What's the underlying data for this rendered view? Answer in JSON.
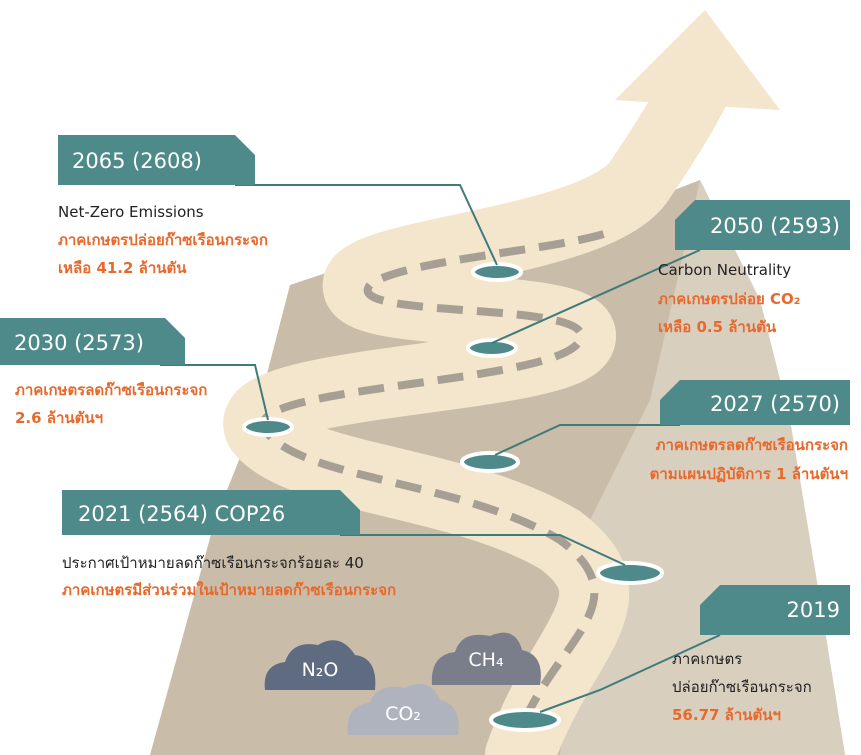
{
  "milestones": [
    {
      "year": "2065 (2608)",
      "lines": [
        "Net-Zero Emissions",
        "ภาคเกษตรปล่อยก๊าซเรือนกระจก",
        "เหลือ 41.2 ล้านตัน"
      ]
    },
    {
      "year": "2050 (2593)",
      "lines": [
        "Carbon Neutrality",
        "ภาคเกษตรปล่อย CO₂",
        "เหลือ 0.5 ล้านตัน"
      ]
    },
    {
      "year": "2030 (2573)",
      "lines": [
        "ภาคเกษตรลดก๊าซเรือนกระจก",
        "2.6 ล้านตันฯ"
      ]
    },
    {
      "year": "2027 (2570)",
      "lines": [
        "ภาคเกษตรลดก๊าซเรือนกระจก",
        "ตามแผนปฏิบัติการ 1 ล้านตันฯ"
      ]
    },
    {
      "year": "2021 (2564) COP26",
      "lines": [
        "ประกาศเป้าหมายลดก๊าซเรือนกระจกร้อยละ 40",
        "ภาคเกษตรมีส่วนร่วมในเป้าหมายลดก๊าซเรือนกระจก"
      ]
    },
    {
      "year": "2019",
      "lines": [
        "ภาคเกษตร",
        "ปล่อยก๊าซเรือนกระจก",
        "56.77 ล้านตันฯ"
      ]
    }
  ],
  "gases": [
    "N₂O",
    "CO₂",
    "CH₄"
  ]
}
